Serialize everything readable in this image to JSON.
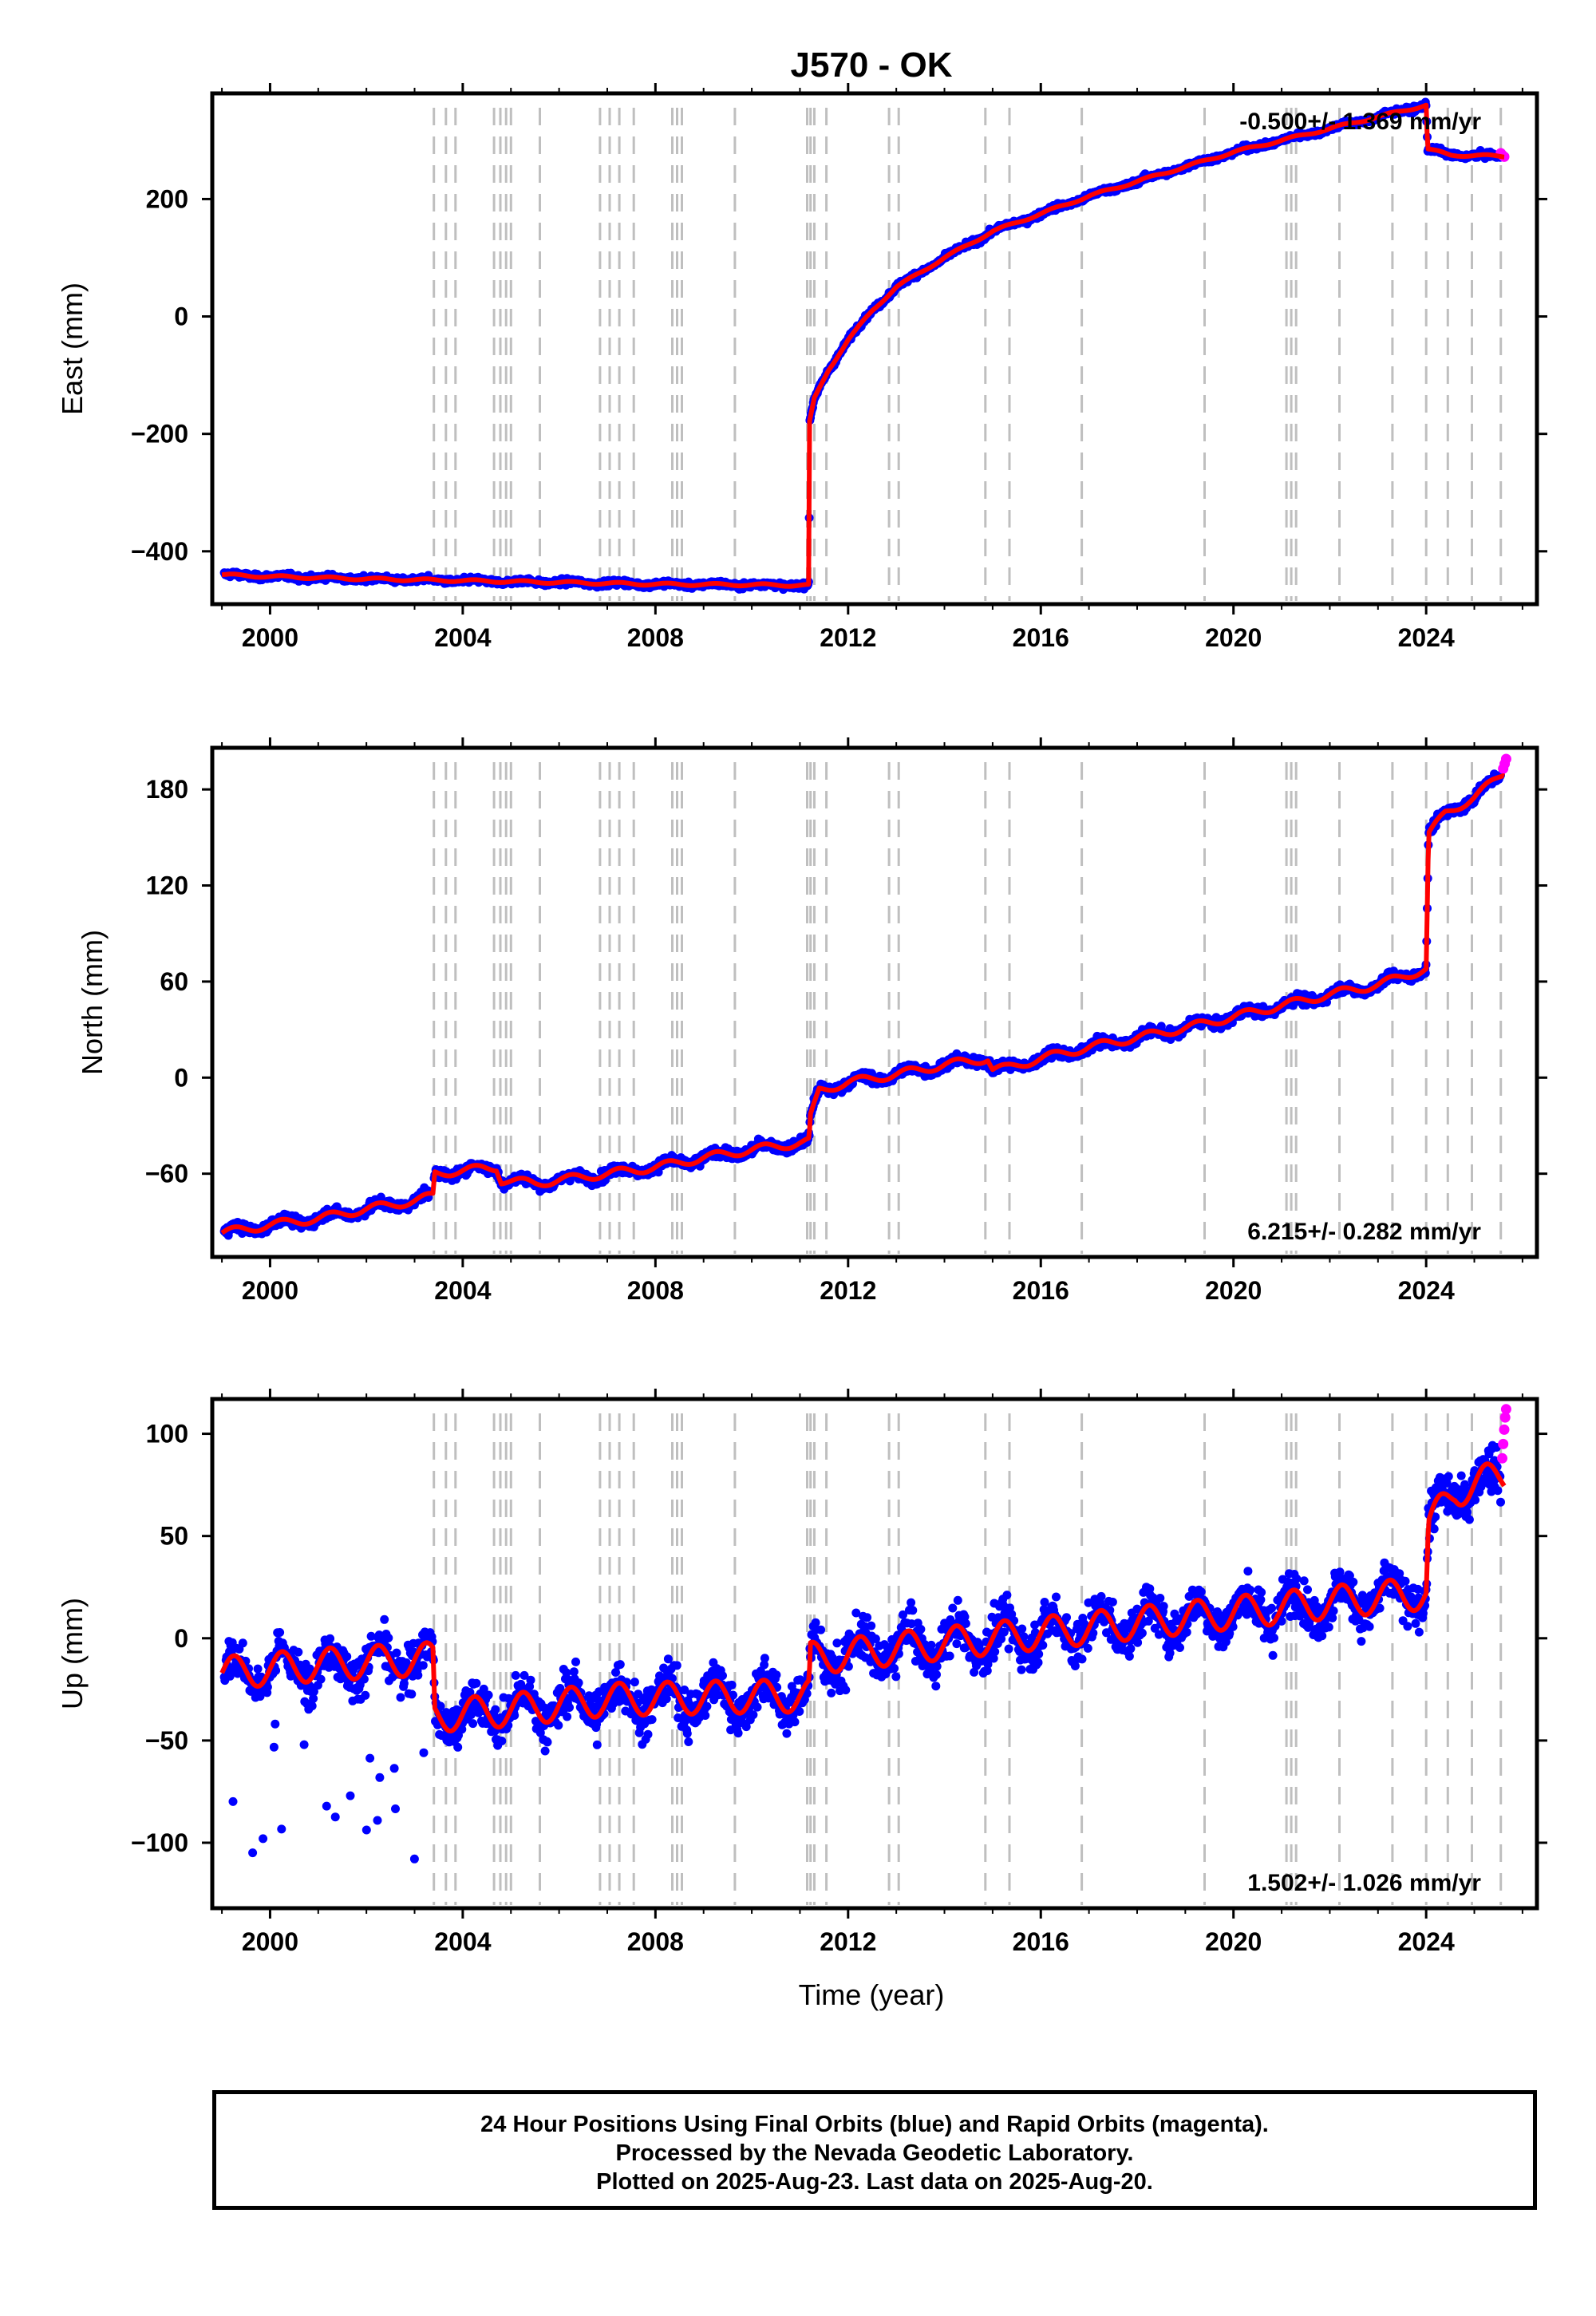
{
  "title": "J570 - OK",
  "colors": {
    "final_orbits": "#0000ff",
    "rapid_orbits": "#ff00ff",
    "model": "#ff0000",
    "event_lines": "#bfbfbf"
  },
  "x_axis": {
    "label": "Time (year)",
    "range": [
      1998.8,
      2026.3
    ],
    "ticks": [
      2000,
      2004,
      2008,
      2012,
      2016,
      2020,
      2024
    ],
    "tick_labels": [
      "2000",
      "2004",
      "2008",
      "2012",
      "2016",
      "2020",
      "2024"
    ]
  },
  "event_lines": [
    2003.4,
    2003.65,
    2003.85,
    2004.65,
    2004.78,
    2004.9,
    2005.0,
    2005.6,
    2006.85,
    2007.05,
    2007.25,
    2007.55,
    2008.35,
    2008.45,
    2008.55,
    2009.65,
    2011.15,
    2011.22,
    2011.3,
    2011.55,
    2012.85,
    2013.05,
    2014.85,
    2015.35,
    2016.85,
    2019.4,
    2021.1,
    2021.2,
    2021.3,
    2022.2,
    2023.3,
    2024.0,
    2024.45,
    2024.95,
    2025.55
  ],
  "chart_data": [
    {
      "type": "scatter",
      "name": "east",
      "ylabel": "East (mm)",
      "ylim": [
        -490,
        380
      ],
      "yticks": [
        -400,
        -200,
        0,
        200
      ],
      "ytick_labels": [
        "−400",
        "−200",
        "0",
        "200"
      ],
      "rate_text": "-0.500+/- 1.369 mm/yr",
      "rate_position": "top-right",
      "noise_mm": 4,
      "seasonal_mm": 2,
      "model_knots": [
        [
          1999.0,
          -440
        ],
        [
          2000.0,
          -443
        ],
        [
          2002.0,
          -447
        ],
        [
          2004.0,
          -450
        ],
        [
          2006.0,
          -453
        ],
        [
          2008.0,
          -456
        ],
        [
          2010.0,
          -457
        ],
        [
          2011.19,
          -458
        ],
        [
          2011.2,
          -180
        ],
        [
          2011.3,
          -140
        ],
        [
          2011.6,
          -90
        ],
        [
          2012.0,
          -40
        ],
        [
          2012.5,
          10
        ],
        [
          2013.0,
          50
        ],
        [
          2014.0,
          100
        ],
        [
          2015.0,
          145
        ],
        [
          2016.0,
          175
        ],
        [
          2017.0,
          205
        ],
        [
          2018.0,
          230
        ],
        [
          2019.0,
          255
        ],
        [
          2020.0,
          280
        ],
        [
          2021.0,
          300
        ],
        [
          2022.0,
          320
        ],
        [
          2023.0,
          340
        ],
        [
          2024.0,
          360
        ],
        [
          2024.03,
          285
        ],
        [
          2024.5,
          275
        ],
        [
          2025.6,
          273
        ]
      ],
      "rapid_points": [
        [
          2025.55,
          278
        ],
        [
          2025.58,
          275
        ],
        [
          2025.62,
          272
        ]
      ]
    },
    {
      "type": "scatter",
      "name": "north",
      "ylabel": "North (mm)",
      "ylim": [
        -112,
        206
      ],
      "yticks": [
        -60,
        0,
        60,
        120,
        180
      ],
      "ytick_labels": [
        "−60",
        "0",
        "60",
        "120",
        "180"
      ],
      "rate_text": "6.215+/- 0.282 mm/yr",
      "rate_position": "bottom-right",
      "noise_mm": 2.6,
      "seasonal_mm": 2.5,
      "model_knots": [
        [
          1999.0,
          -97
        ],
        [
          2000.0,
          -92
        ],
        [
          2001.0,
          -88
        ],
        [
          2002.0,
          -82
        ],
        [
          2003.0,
          -77
        ],
        [
          2003.38,
          -74
        ],
        [
          2003.42,
          -60
        ],
        [
          2004.0,
          -58
        ],
        [
          2004.7,
          -56
        ],
        [
          2004.8,
          -64
        ],
        [
          2005.5,
          -66
        ],
        [
          2007.0,
          -60
        ],
        [
          2008.0,
          -56
        ],
        [
          2009.0,
          -50
        ],
        [
          2010.0,
          -45
        ],
        [
          2011.19,
          -40
        ],
        [
          2011.22,
          -25
        ],
        [
          2011.4,
          -8
        ],
        [
          2012.0,
          -3
        ],
        [
          2013.0,
          2
        ],
        [
          2014.0,
          8
        ],
        [
          2014.9,
          12
        ],
        [
          2015.0,
          5
        ],
        [
          2015.3,
          6
        ],
        [
          2016.0,
          12
        ],
        [
          2017.0,
          19
        ],
        [
          2018.0,
          25
        ],
        [
          2019.0,
          31
        ],
        [
          2020.0,
          38
        ],
        [
          2021.0,
          45
        ],
        [
          2022.0,
          52
        ],
        [
          2023.0,
          58
        ],
        [
          2024.0,
          68
        ],
        [
          2024.05,
          152
        ],
        [
          2024.4,
          165
        ],
        [
          2025.0,
          175
        ],
        [
          2025.6,
          190
        ]
      ],
      "rapid_points": [
        [
          2025.6,
          193
        ],
        [
          2025.63,
          196
        ],
        [
          2025.66,
          199
        ]
      ]
    },
    {
      "type": "scatter",
      "name": "up",
      "ylabel": "Up (mm)",
      "ylim": [
        -132,
        117
      ],
      "yticks": [
        -100,
        -50,
        0,
        50,
        100
      ],
      "ytick_labels": [
        "−100",
        "−50",
        "0",
        "50",
        "100"
      ],
      "rate_text": "1.502+/- 1.026 mm/yr",
      "rate_position": "bottom-right",
      "noise_mm": 9,
      "seasonal_mm": 8,
      "model_knots": [
        [
          1999.0,
          -17
        ],
        [
          2001.0,
          -13
        ],
        [
          2003.38,
          -10
        ],
        [
          2003.42,
          -38
        ],
        [
          2005.0,
          -35
        ],
        [
          2007.0,
          -30
        ],
        [
          2009.0,
          -29
        ],
        [
          2011.19,
          -28
        ],
        [
          2011.22,
          -10
        ],
        [
          2013.0,
          -5
        ],
        [
          2015.0,
          0
        ],
        [
          2017.0,
          5
        ],
        [
          2019.0,
          10
        ],
        [
          2021.0,
          15
        ],
        [
          2023.0,
          20
        ],
        [
          2024.0,
          22
        ],
        [
          2024.05,
          55
        ],
        [
          2024.6,
          72
        ],
        [
          2025.6,
          80
        ]
      ],
      "rapid_points": [
        [
          2025.58,
          88
        ],
        [
          2025.6,
          95
        ],
        [
          2025.62,
          102
        ],
        [
          2025.64,
          108
        ],
        [
          2025.66,
          112
        ]
      ]
    }
  ],
  "footer": {
    "line1": "24 Hour Positions Using Final Orbits (blue) and Rapid Orbits (magenta).",
    "line2": "Processed by the Nevada Geodetic Laboratory.",
    "line3": "Plotted on 2025-Aug-23. Last data on 2025-Aug-20."
  }
}
